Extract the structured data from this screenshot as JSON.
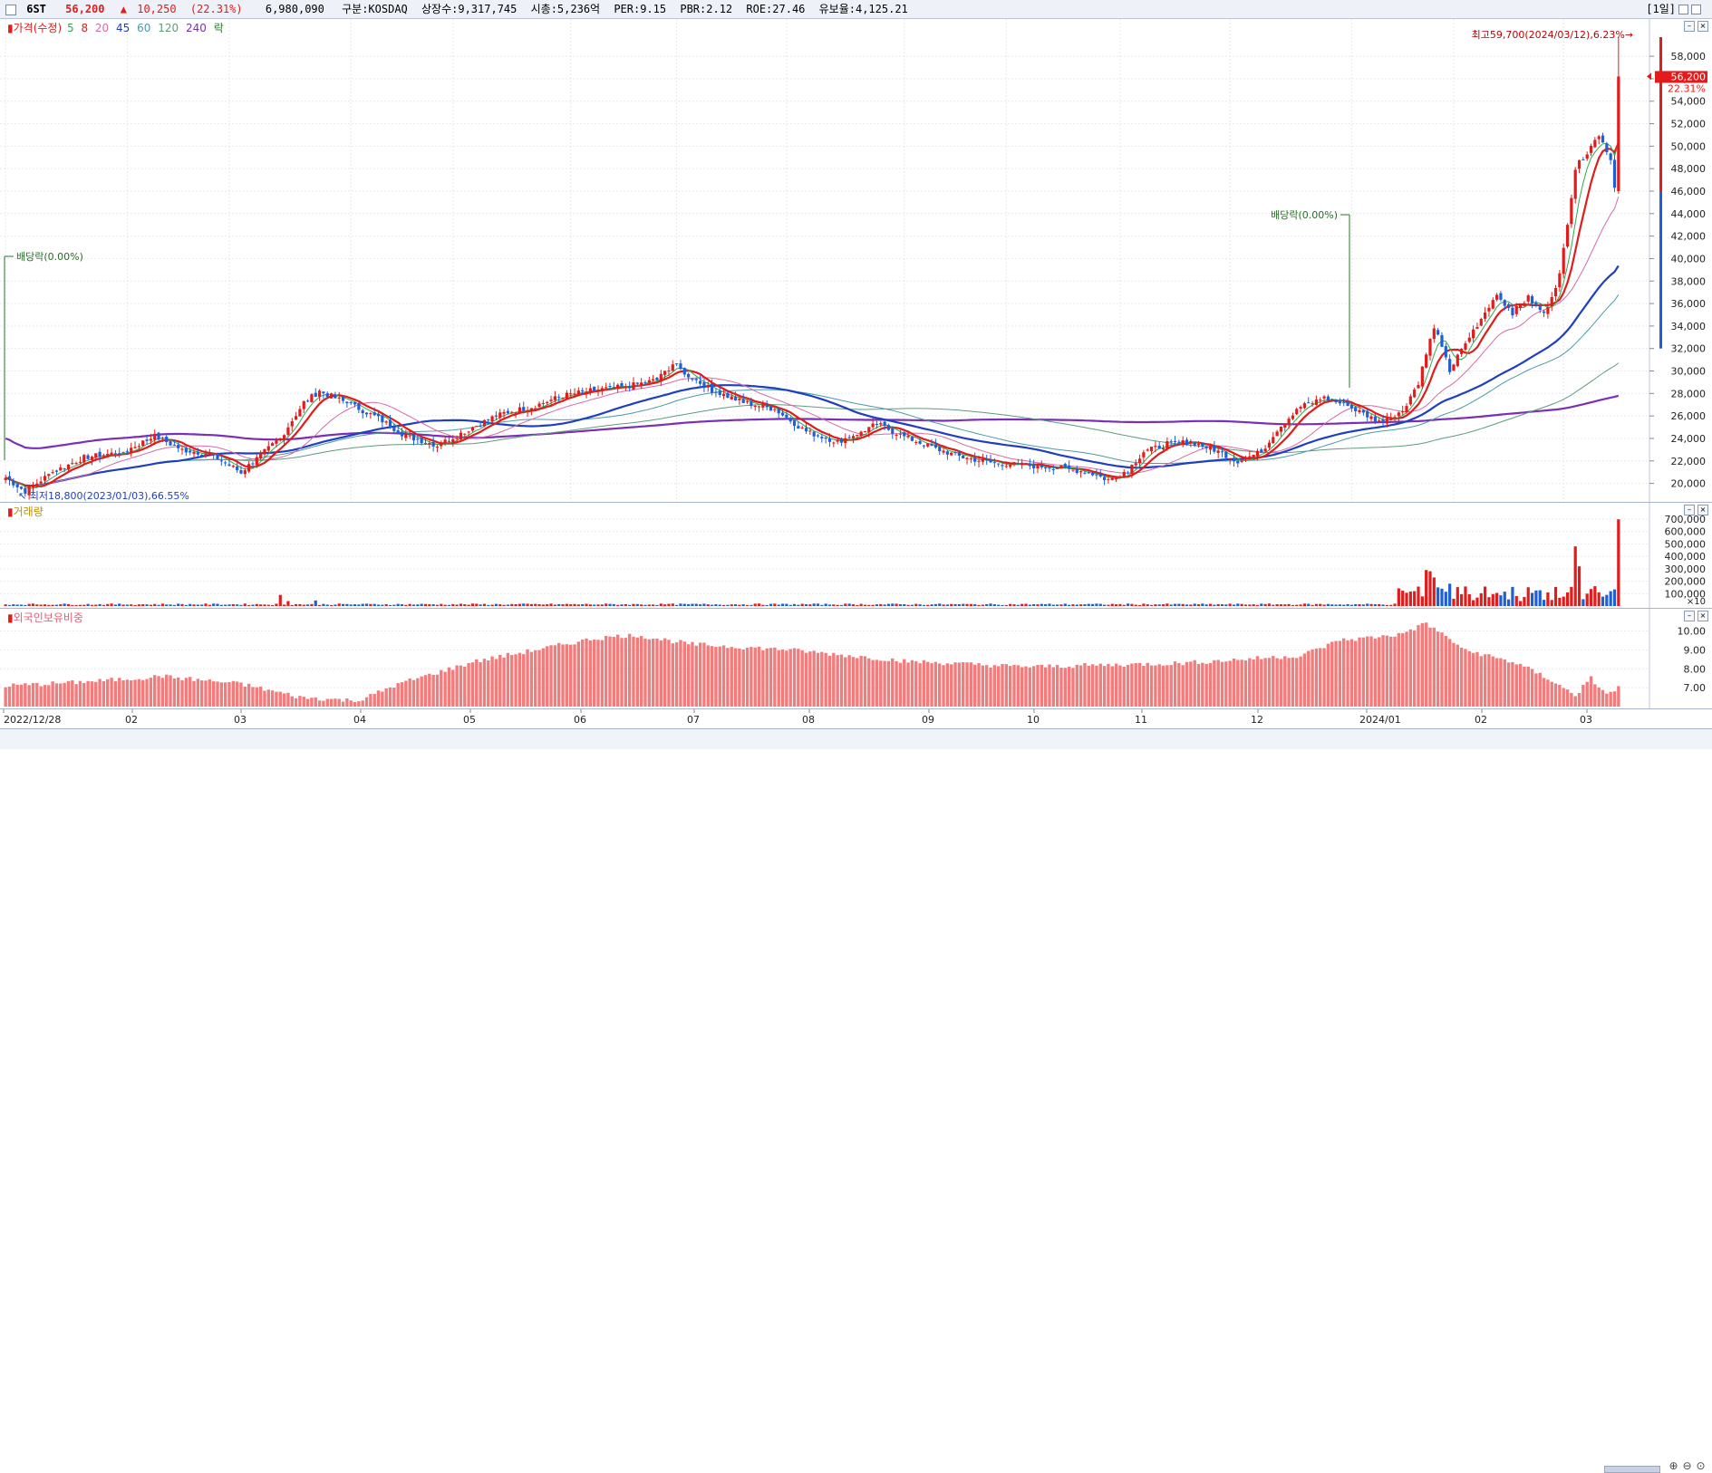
{
  "header": {
    "code": "6ST",
    "price": "56,200",
    "change_arrow": "▲",
    "change": "10,250",
    "change_pct": "(22.31%)",
    "volume": "6,980,090",
    "market": "구분:KOSDAQ",
    "shares": "상장수:9,317,745",
    "market_cap": "시총:5,236억",
    "per": "PER:9.15",
    "pbr": "PBR:2.12",
    "roe": "ROE:27.46",
    "reserve": "유보율:4,125.21",
    "period": "[1일]"
  },
  "legend": {
    "price_label": "가격(수정)",
    "ma": [
      {
        "label": "5",
        "color": "#2fa84f"
      },
      {
        "label": "8",
        "color": "#e21b1b"
      },
      {
        "label": "20",
        "color": "#d86aa8"
      },
      {
        "label": "45",
        "color": "#1f3fbf"
      },
      {
        "label": "60",
        "color": "#4b9aa8"
      },
      {
        "label": "120",
        "color": "#5e9c7a"
      },
      {
        "label": "240",
        "color": "#7a2fb4"
      }
    ],
    "ex_label": "락"
  },
  "price_panel": {
    "y_ticks": [
      "58,000",
      "56,000",
      "54,000",
      "52,000",
      "50,000",
      "48,000",
      "46,000",
      "44,000",
      "42,000",
      "40,000",
      "38,000",
      "36,000",
      "34,000",
      "32,000",
      "30,000",
      "28,000",
      "26,000",
      "24,000",
      "22,000",
      "20,000"
    ],
    "current_price": "56,200",
    "current_pct": "22.31%",
    "high_annotation": "최고59,700(2024/03/12),6.23%→",
    "low_annotation": "↖ 최저18,800(2023/01/03),66.55%",
    "dividend1": "배당락(0.00%)",
    "dividend2": "배당락(0.00%)"
  },
  "volume_panel": {
    "label": "거래량",
    "y_ticks": [
      "700,000",
      "600,000",
      "500,000",
      "400,000",
      "300,000",
      "200,000",
      "100,000"
    ],
    "unit": "×10"
  },
  "foreign_panel": {
    "label": "외국인보유비중",
    "y_ticks": [
      "10.00",
      "9.00",
      "8.00",
      "7.00"
    ]
  },
  "x_labels": [
    "2022/12/28",
    "02",
    "03",
    "04",
    "05",
    "06",
    "07",
    "08",
    "09",
    "10",
    "11",
    "12",
    "2024/01",
    "02",
    "03"
  ],
  "colors": {
    "up": "#e21b1b",
    "down": "#1f5fd6",
    "foreign_bar": "#f27c7c",
    "grid": "#e6e9ee"
  },
  "chart_data": {
    "type": "candlestick",
    "price_ylim": [
      19000,
      59700
    ],
    "volume_ylim": [
      0,
      700000
    ],
    "foreign_ylim": [
      6.0,
      10.6
    ],
    "anchors": [
      [
        0,
        20500
      ],
      [
        5,
        19300
      ],
      [
        12,
        21000
      ],
      [
        20,
        22300
      ],
      [
        30,
        22800
      ],
      [
        38,
        24200
      ],
      [
        45,
        23000
      ],
      [
        52,
        22600
      ],
      [
        60,
        21000
      ],
      [
        64,
        22200
      ],
      [
        70,
        24000
      ],
      [
        76,
        27200
      ],
      [
        80,
        28200
      ],
      [
        88,
        27000
      ],
      [
        95,
        25800
      ],
      [
        102,
        24200
      ],
      [
        110,
        23400
      ],
      [
        118,
        24800
      ],
      [
        126,
        26200
      ],
      [
        134,
        26800
      ],
      [
        142,
        27800
      ],
      [
        150,
        28300
      ],
      [
        158,
        28600
      ],
      [
        166,
        29200
      ],
      [
        170,
        30600
      ],
      [
        174,
        29600
      ],
      [
        180,
        28300
      ],
      [
        188,
        27200
      ],
      [
        196,
        26600
      ],
      [
        204,
        24600
      ],
      [
        212,
        23700
      ],
      [
        218,
        24600
      ],
      [
        222,
        25300
      ],
      [
        228,
        24300
      ],
      [
        236,
        23200
      ],
      [
        244,
        22300
      ],
      [
        252,
        21800
      ],
      [
        260,
        21600
      ],
      [
        268,
        21400
      ],
      [
        276,
        21000
      ],
      [
        281,
        20300
      ],
      [
        286,
        21200
      ],
      [
        290,
        22800
      ],
      [
        296,
        23500
      ],
      [
        302,
        23700
      ],
      [
        308,
        23000
      ],
      [
        314,
        22000
      ],
      [
        320,
        22800
      ],
      [
        324,
        24800
      ],
      [
        330,
        26800
      ],
      [
        336,
        27600
      ],
      [
        342,
        26900
      ],
      [
        350,
        25500
      ],
      [
        356,
        26500
      ],
      [
        360,
        29000
      ],
      [
        364,
        34000
      ],
      [
        368,
        30000
      ],
      [
        372,
        32500
      ],
      [
        376,
        34600
      ],
      [
        380,
        36800
      ],
      [
        384,
        35200
      ],
      [
        388,
        36500
      ],
      [
        392,
        35000
      ],
      [
        396,
        38500
      ],
      [
        400,
        48000
      ],
      [
        404,
        50000
      ],
      [
        406,
        51000
      ],
      [
        409,
        49000
      ],
      [
        410,
        46200
      ],
      [
        411,
        56200
      ]
    ],
    "high": {
      "value": 59700,
      "date": "2024/03/12"
    },
    "low": {
      "value": 18800,
      "date": "2023/01/03"
    }
  }
}
